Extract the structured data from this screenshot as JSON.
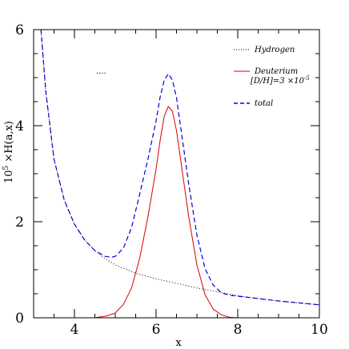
{
  "chart_data": {
    "type": "line",
    "xlabel": "x",
    "ylabel_main": "10",
    "ylabel_sup": "5",
    "ylabel_rest": " ×H(a,x)",
    "xlim": [
      3,
      10
    ],
    "ylim": [
      0,
      6
    ],
    "xticks": [
      4,
      6,
      8,
      10
    ],
    "yticks": [
      0,
      2,
      4,
      6
    ],
    "xtick_labels": [
      "4",
      "6",
      "8",
      "10"
    ],
    "ytick_labels": [
      "0",
      "2",
      "4",
      "6"
    ],
    "grid": false,
    "legend_position": "top-right",
    "series": [
      {
        "name": "Hydrogen",
        "style": "dotted",
        "color": "#000000",
        "x": [
          3.18,
          3.3,
          3.5,
          3.75,
          4.0,
          4.25,
          4.5,
          4.75,
          5.0,
          5.5,
          6.0,
          6.5,
          7.0,
          7.5,
          8.0,
          8.5,
          9.0,
          9.5,
          10.0
        ],
        "y": [
          6.0,
          4.7,
          3.3,
          2.45,
          1.95,
          1.62,
          1.4,
          1.23,
          1.1,
          0.93,
          0.81,
          0.72,
          0.62,
          0.54,
          0.46,
          0.4,
          0.35,
          0.31,
          0.27
        ]
      },
      {
        "name": "Deuterium",
        "name_line2_prefix": "[D/H]=3 ×10",
        "name_line2_sup": "-5",
        "style": "solid",
        "color": "#dd0000",
        "x": [
          4.5,
          4.8,
          5.0,
          5.2,
          5.4,
          5.6,
          5.8,
          6.0,
          6.1,
          6.2,
          6.3,
          6.4,
          6.5,
          6.6,
          6.8,
          7.0,
          7.2,
          7.4,
          7.6,
          7.8,
          8.0
        ],
        "y": [
          0.0,
          0.04,
          0.1,
          0.28,
          0.62,
          1.25,
          2.1,
          3.1,
          3.7,
          4.2,
          4.4,
          4.3,
          3.9,
          3.3,
          2.1,
          1.1,
          0.48,
          0.18,
          0.06,
          0.01,
          0.0
        ]
      },
      {
        "name": "total",
        "style": "dashed",
        "color": "#0000dd",
        "x": [
          3.18,
          3.3,
          3.5,
          3.75,
          4.0,
          4.25,
          4.5,
          4.75,
          4.9,
          5.0,
          5.2,
          5.4,
          5.6,
          5.8,
          6.0,
          6.1,
          6.2,
          6.3,
          6.4,
          6.5,
          6.6,
          6.8,
          7.0,
          7.2,
          7.4,
          7.6,
          7.8,
          8.0,
          8.5,
          9.0,
          9.5,
          10.0
        ],
        "y": [
          6.0,
          4.7,
          3.3,
          2.45,
          1.95,
          1.62,
          1.4,
          1.28,
          1.26,
          1.28,
          1.45,
          1.88,
          2.58,
          3.3,
          4.1,
          4.6,
          4.95,
          5.08,
          4.95,
          4.58,
          3.98,
          2.78,
          1.72,
          1.02,
          0.68,
          0.52,
          0.47,
          0.45,
          0.4,
          0.35,
          0.31,
          0.27
        ]
      }
    ],
    "annotation": "...."
  }
}
